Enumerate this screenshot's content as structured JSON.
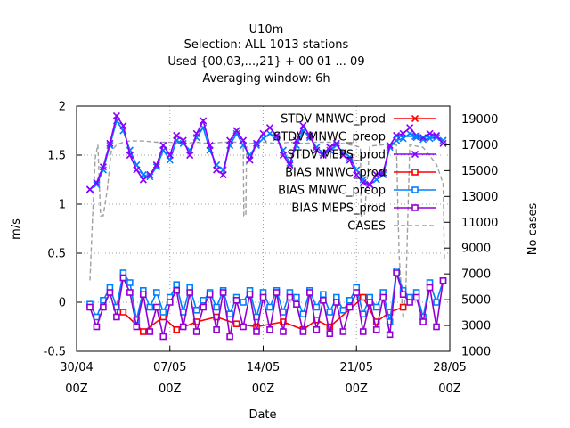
{
  "chart_data": {
    "type": "line",
    "title_lines": [
      "U10m",
      "Selection: ALL   1013 stations",
      "Used {00,03,...,21} + 00 01 ... 09",
      "Averaging window:  6h"
    ],
    "xlabel": "Date",
    "ylabel": "m/s",
    "y2label": "No cases",
    "xlim": [
      0,
      28
    ],
    "ylim": [
      -0.5,
      2
    ],
    "y2lim": [
      1000,
      20000
    ],
    "x_ticks": [
      {
        "x": 0,
        "label": "30/04",
        "sub": "00Z"
      },
      {
        "x": 7,
        "label": "07/05",
        "sub": "00Z"
      },
      {
        "x": 14,
        "label": "14/05",
        "sub": "00Z"
      },
      {
        "x": 21,
        "label": "21/05",
        "sub": "00Z"
      },
      {
        "x": 28,
        "label": "28/05",
        "sub": "00Z"
      }
    ],
    "y_ticks": [
      -0.5,
      0,
      0.5,
      1,
      1.5,
      2
    ],
    "y_tick_labels": [
      "-0.5",
      "0",
      "0.5",
      "1",
      "1.5",
      "2"
    ],
    "y2_ticks": [
      1000,
      3000,
      5000,
      7000,
      9000,
      11000,
      13000,
      15000,
      17000,
      19000
    ],
    "y2_tick_labels": [
      "1000",
      "3000",
      "5000",
      "7000",
      "9000",
      "11000",
      "13000",
      "15000",
      "17000",
      "19000"
    ],
    "legend_position": "top-right",
    "series": [
      {
        "name": "STDV MNWC_prod",
        "color": "#ff0000",
        "marker": "x",
        "axis": "y",
        "x": [],
        "values": []
      },
      {
        "name": "STDV MNWC_preop",
        "color": "#0080ff",
        "marker": "x",
        "axis": "y",
        "x": [
          1.0,
          1.5,
          2.0,
          2.5,
          3.0,
          3.5,
          4.0,
          4.5,
          5.0,
          5.5,
          6.0,
          6.5,
          7.0,
          7.5,
          8.0,
          8.5,
          9.0,
          9.5,
          10.0,
          10.5,
          11.0,
          11.5,
          12.0,
          12.5,
          13.0,
          13.5,
          14.0,
          14.5,
          15.0,
          15.5,
          16.0,
          16.5,
          17.0,
          17.5,
          18.0,
          18.5,
          19.0,
          19.5,
          20.0,
          20.5,
          21.0,
          21.5,
          22.0,
          22.5,
          23.0,
          23.5,
          24.0,
          24.5,
          25.0,
          25.5,
          26.0,
          26.5,
          27.0,
          27.5
        ],
        "values": [
          1.15,
          1.2,
          1.35,
          1.6,
          1.85,
          1.75,
          1.55,
          1.4,
          1.3,
          1.28,
          1.38,
          1.55,
          1.45,
          1.65,
          1.62,
          1.55,
          1.68,
          1.78,
          1.55,
          1.4,
          1.35,
          1.6,
          1.72,
          1.6,
          1.5,
          1.6,
          1.67,
          1.72,
          1.68,
          1.55,
          1.42,
          1.6,
          1.75,
          1.68,
          1.58,
          1.52,
          1.55,
          1.6,
          1.53,
          1.48,
          1.35,
          1.25,
          1.2,
          1.25,
          1.3,
          1.58,
          1.65,
          1.67,
          1.72,
          1.68,
          1.66,
          1.67,
          1.68,
          1.65
        ]
      },
      {
        "name": "STDV MEPS_prod",
        "color": "#8b00ff",
        "marker": "x",
        "axis": "y",
        "x": [
          1.0,
          1.5,
          2.0,
          2.5,
          3.0,
          3.5,
          4.0,
          4.5,
          5.0,
          5.5,
          6.0,
          6.5,
          7.0,
          7.5,
          8.0,
          8.5,
          9.0,
          9.5,
          10.0,
          10.5,
          11.0,
          11.5,
          12.0,
          12.5,
          13.0,
          13.5,
          14.0,
          14.5,
          15.0,
          15.5,
          16.0,
          16.5,
          17.0,
          17.5,
          18.0,
          18.5,
          19.0,
          19.5,
          20.0,
          20.5,
          21.0,
          21.5,
          22.0,
          22.5,
          23.0,
          23.5,
          24.0,
          24.5,
          25.0,
          25.5,
          26.0,
          26.5,
          27.0,
          27.5
        ],
        "values": [
          1.15,
          1.22,
          1.38,
          1.62,
          1.9,
          1.8,
          1.5,
          1.35,
          1.25,
          1.3,
          1.4,
          1.6,
          1.5,
          1.7,
          1.65,
          1.5,
          1.72,
          1.85,
          1.6,
          1.35,
          1.3,
          1.65,
          1.75,
          1.65,
          1.45,
          1.62,
          1.72,
          1.78,
          1.7,
          1.5,
          1.4,
          1.65,
          1.8,
          1.7,
          1.55,
          1.5,
          1.58,
          1.62,
          1.5,
          1.45,
          1.3,
          1.22,
          1.2,
          1.3,
          1.32,
          1.6,
          1.7,
          1.72,
          1.78,
          1.7,
          1.68,
          1.72,
          1.7,
          1.62
        ]
      },
      {
        "name": "BIAS MNWC_prod",
        "color": "#ff0000",
        "marker": "square",
        "axis": "y",
        "x": [
          3.5,
          5.0,
          6.5,
          7.5,
          9.0,
          10.5,
          12.0,
          13.5,
          15.5,
          17.0,
          18.0,
          19.0,
          21.5,
          22.5,
          23.5,
          24.5
        ],
        "values": [
          -0.1,
          -0.3,
          -0.15,
          -0.28,
          -0.2,
          -0.15,
          -0.22,
          -0.25,
          -0.2,
          -0.28,
          -0.18,
          -0.25,
          0.05,
          -0.2,
          -0.1,
          -0.05
        ]
      },
      {
        "name": "BIAS MNWC_preop",
        "color": "#0080ff",
        "marker": "square",
        "axis": "y",
        "x": [
          1.0,
          1.5,
          2.0,
          2.5,
          3.0,
          3.5,
          4.0,
          4.5,
          5.0,
          5.5,
          6.0,
          6.5,
          7.0,
          7.5,
          8.0,
          8.5,
          9.0,
          9.5,
          10.0,
          10.5,
          11.0,
          11.5,
          12.0,
          12.5,
          13.0,
          13.5,
          14.0,
          14.5,
          15.0,
          15.5,
          16.0,
          16.5,
          17.0,
          17.5,
          18.0,
          18.5,
          19.0,
          19.5,
          20.0,
          20.5,
          21.0,
          21.5,
          22.0,
          22.5,
          23.0,
          23.5,
          24.0,
          24.5,
          25.0,
          25.5,
          26.0,
          26.5,
          27.0,
          27.5
        ],
        "values": [
          -0.02,
          -0.15,
          0.02,
          0.15,
          -0.05,
          0.3,
          0.2,
          -0.18,
          0.12,
          -0.05,
          0.1,
          -0.1,
          0.05,
          0.18,
          -0.1,
          0.15,
          -0.08,
          0.02,
          0.1,
          -0.05,
          0.12,
          -0.12,
          0.05,
          0.0,
          0.12,
          -0.15,
          0.1,
          -0.05,
          0.12,
          -0.1,
          0.1,
          0.05,
          -0.12,
          0.12,
          -0.05,
          0.08,
          -0.1,
          0.05,
          -0.08,
          0.02,
          0.15,
          -0.12,
          0.05,
          -0.05,
          0.1,
          -0.2,
          0.32,
          0.12,
          0.05,
          0.1,
          -0.15,
          0.2,
          0.0,
          0.22
        ]
      },
      {
        "name": "BIAS MEPS_prod",
        "color": "#9400d3",
        "marker": "square",
        "axis": "y",
        "x": [
          1.0,
          1.5,
          2.0,
          2.5,
          3.0,
          3.5,
          4.0,
          4.5,
          5.0,
          5.5,
          6.0,
          6.5,
          7.0,
          7.5,
          8.0,
          8.5,
          9.0,
          9.5,
          10.0,
          10.5,
          11.0,
          11.5,
          12.0,
          12.5,
          13.0,
          13.5,
          14.0,
          14.5,
          15.0,
          15.5,
          16.0,
          16.5,
          17.0,
          17.5,
          18.0,
          18.5,
          19.0,
          19.5,
          20.0,
          20.5,
          21.0,
          21.5,
          22.0,
          22.5,
          23.0,
          23.5,
          24.0,
          24.5,
          25.0,
          25.5,
          26.0,
          26.5,
          27.0,
          27.5
        ],
        "values": [
          -0.05,
          -0.25,
          -0.05,
          0.1,
          -0.15,
          0.25,
          0.1,
          -0.25,
          0.08,
          -0.3,
          -0.05,
          -0.35,
          0.0,
          0.12,
          -0.25,
          0.1,
          -0.3,
          -0.05,
          0.08,
          -0.28,
          0.1,
          -0.35,
          0.02,
          -0.25,
          0.08,
          -0.3,
          0.05,
          -0.28,
          0.1,
          -0.3,
          0.05,
          -0.02,
          -0.3,
          0.1,
          -0.28,
          0.02,
          -0.32,
          0.0,
          -0.3,
          -0.05,
          0.1,
          -0.3,
          0.0,
          -0.28,
          0.05,
          -0.33,
          0.3,
          0.08,
          0.0,
          0.05,
          -0.2,
          0.15,
          -0.25,
          0.22
        ]
      },
      {
        "name": "CASES",
        "color": "#a0a0a0",
        "marker": "none",
        "dash": true,
        "axis": "y2",
        "x": [
          1.0,
          1.2,
          1.4,
          1.6,
          1.8,
          2.0,
          2.3,
          2.6,
          3.0,
          3.5,
          4.0,
          5.0,
          6.0,
          7.0,
          8.0,
          9.0,
          10.0,
          11.0,
          12.0,
          12.5,
          12.55,
          12.7,
          12.75,
          13.0,
          14.0,
          15.0,
          16.0,
          17.0,
          18.0,
          19.0,
          20.0,
          20.5,
          21.0,
          21.3,
          21.35,
          21.6,
          22.0,
          23.0,
          24.0,
          24.2,
          24.5,
          24.7,
          25.0,
          26.0,
          27.0,
          27.5,
          27.6
        ],
        "values": [
          6500,
          11500,
          16000,
          17000,
          11500,
          11500,
          13500,
          16500,
          17000,
          17200,
          17300,
          17300,
          17200,
          17200,
          17100,
          17200,
          17100,
          17200,
          17200,
          17000,
          11500,
          11500,
          16800,
          17100,
          17200,
          17100,
          17200,
          17100,
          17200,
          17200,
          17100,
          17000,
          16900,
          16800,
          11500,
          11500,
          16900,
          17000,
          17000,
          8500,
          3500,
          5500,
          17000,
          16800,
          15500,
          14000,
          8000
        ]
      }
    ]
  }
}
